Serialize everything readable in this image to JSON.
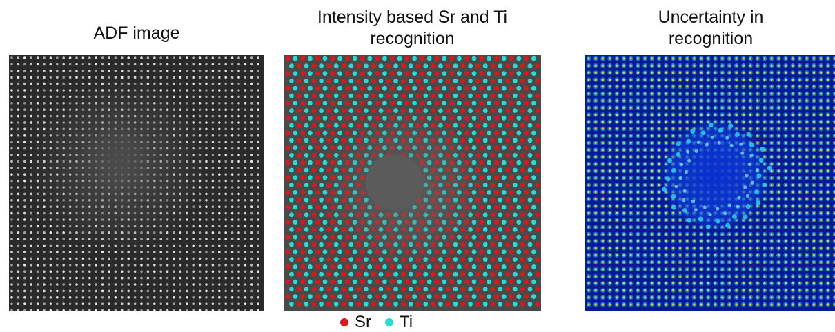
{
  "panels": [
    {
      "id": "adf",
      "title_lines": [
        "ADF image"
      ]
    },
    {
      "id": "recognition",
      "title_lines": [
        "Intensity based Sr and Ti",
        "recognition"
      ]
    },
    {
      "id": "uncertainty",
      "title_lines": [
        "Uncertainty in",
        "recognition"
      ]
    }
  ],
  "legend": {
    "items": [
      {
        "label": "Sr",
        "color": "#e0161b"
      },
      {
        "label": "Ti",
        "color": "#27dcd0"
      }
    ]
  },
  "colors": {
    "adf_background": "#2a2a2a",
    "adf_atom": "#e6e6e6",
    "recognition_background": "#4a4a4a",
    "sr": "#e0161b",
    "ti": "#27dcd0",
    "uncertainty_background": "#061a94",
    "uncertainty_low": "#0a2fd0",
    "uncertainty_mid": "#28c8f0",
    "uncertainty_high": "#f2e230"
  }
}
